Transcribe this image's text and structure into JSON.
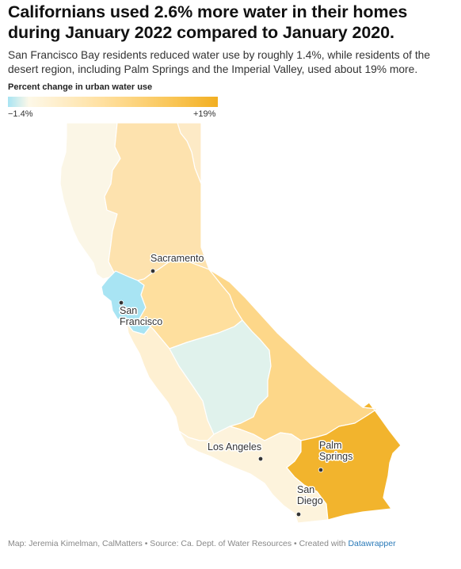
{
  "title": "Californians used 2.6% more water in their homes during January 2022 compared to January 2020.",
  "subtitle": "San Francisco Bay residents reduced water use by roughly 1.4%, while residents of the desert region, including Palm Springs and the Imperial Valley, used about 19% more.",
  "legend": {
    "title": "Percent change in urban water use",
    "min_label": "−1.4%",
    "max_label": "+19%",
    "colors": [
      "#a8e4f3",
      "#fdf8e8",
      "#ffe0a0",
      "#f9c452",
      "#f2af22"
    ]
  },
  "regions": [
    {
      "id": "north-coast",
      "percent_change": 0.5,
      "color": "#fbf6e6"
    },
    {
      "id": "sacramento-river",
      "percent_change": 6.5,
      "color": "#fde2ae"
    },
    {
      "id": "north-lahontan",
      "percent_change": 4.0,
      "color": "#fdeac6"
    },
    {
      "id": "san-francisco-bay",
      "percent_change": -1.4,
      "color": "#a8e4f3"
    },
    {
      "id": "san-joaquin-river",
      "percent_change": 8.0,
      "color": "#fedf9e"
    },
    {
      "id": "tulare-lake",
      "percent_change": 0.0,
      "color": "#e0f2ec"
    },
    {
      "id": "central-coast",
      "percent_change": 3.0,
      "color": "#fef0d2"
    },
    {
      "id": "south-lahontan",
      "percent_change": 9.5,
      "color": "#fdd789"
    },
    {
      "id": "south-coast",
      "percent_change": 2.5,
      "color": "#fdf3dc"
    },
    {
      "id": "colorado-river",
      "percent_change": 19.0,
      "color": "#f2b42d"
    }
  ],
  "cities": [
    {
      "name": "Sacramento",
      "lines": [
        "Sacramento"
      ]
    },
    {
      "name": "San Francisco",
      "lines": [
        "San",
        "Francisco"
      ]
    },
    {
      "name": "Los Angeles",
      "lines": [
        "Los Angeles"
      ]
    },
    {
      "name": "Palm Springs",
      "lines": [
        "Palm",
        "Springs"
      ]
    },
    {
      "name": "San Diego",
      "lines": [
        "San",
        "Diego"
      ]
    }
  ],
  "footer": {
    "credit": "Map: Jeremia Kimelman, CalMatters • Source: Ca. Dept. of Water Resources • Created with ",
    "link_text": "Datawrapper"
  }
}
